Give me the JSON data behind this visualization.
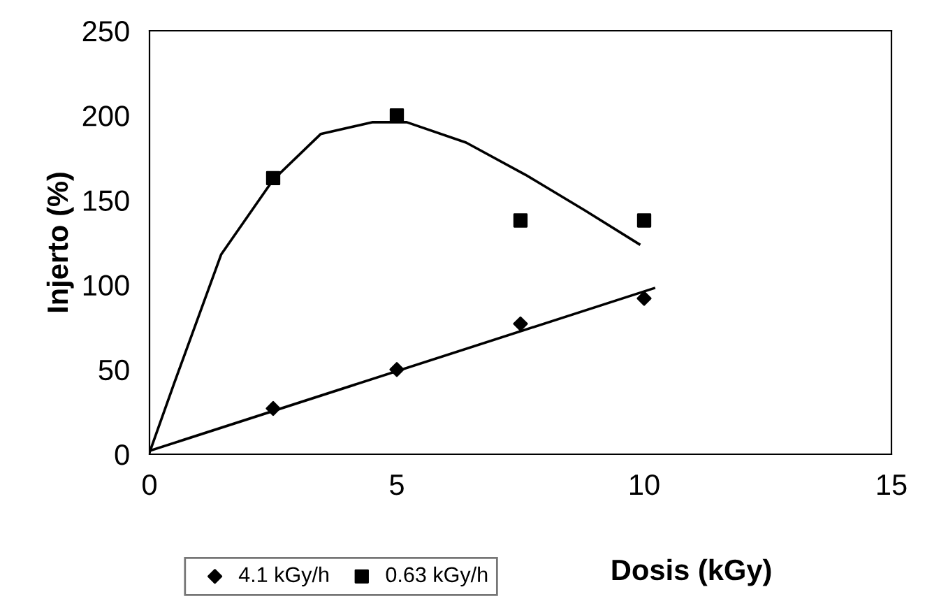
{
  "chart_data": {
    "type": "scatter",
    "xlabel": "Dosis (kGy)",
    "ylabel": "Injerto (%)",
    "xlim": [
      0,
      15
    ],
    "xticks": [
      0,
      5,
      10,
      15
    ],
    "ylim": [
      0,
      250
    ],
    "yticks": [
      0,
      50,
      100,
      150,
      200,
      250
    ],
    "grid": false,
    "legend": "bottom left",
    "series": [
      {
        "name": "4.1 kGy/h",
        "color": "#000000",
        "marker": "diamond",
        "x": [
          2.5,
          5,
          7.5,
          10
        ],
        "values": [
          27,
          50,
          77,
          92
        ]
      },
      {
        "name": "0.63 kGy/h",
        "color": "#000000",
        "marker": "square",
        "x": [
          2.5,
          5,
          7.5,
          10
        ],
        "values": [
          163,
          200,
          138,
          138
        ]
      },
      {
        "type": "line",
        "color": "#000000",
        "marker": "none",
        "line_style": "solid",
        "x": [
          0,
          10.2
        ],
        "values": [
          2,
          98
        ]
      },
      {
        "type": "line",
        "color": "#000000",
        "marker": "none",
        "line_style": "solid",
        "x": [
          0,
          0.5,
          1.45,
          2.5,
          3.46,
          4.5,
          5.2,
          6.4,
          7.6,
          8.8,
          9.9
        ],
        "values": [
          1,
          42,
          118,
          162,
          189,
          196,
          196,
          184,
          165,
          144,
          124
        ]
      }
    ]
  }
}
